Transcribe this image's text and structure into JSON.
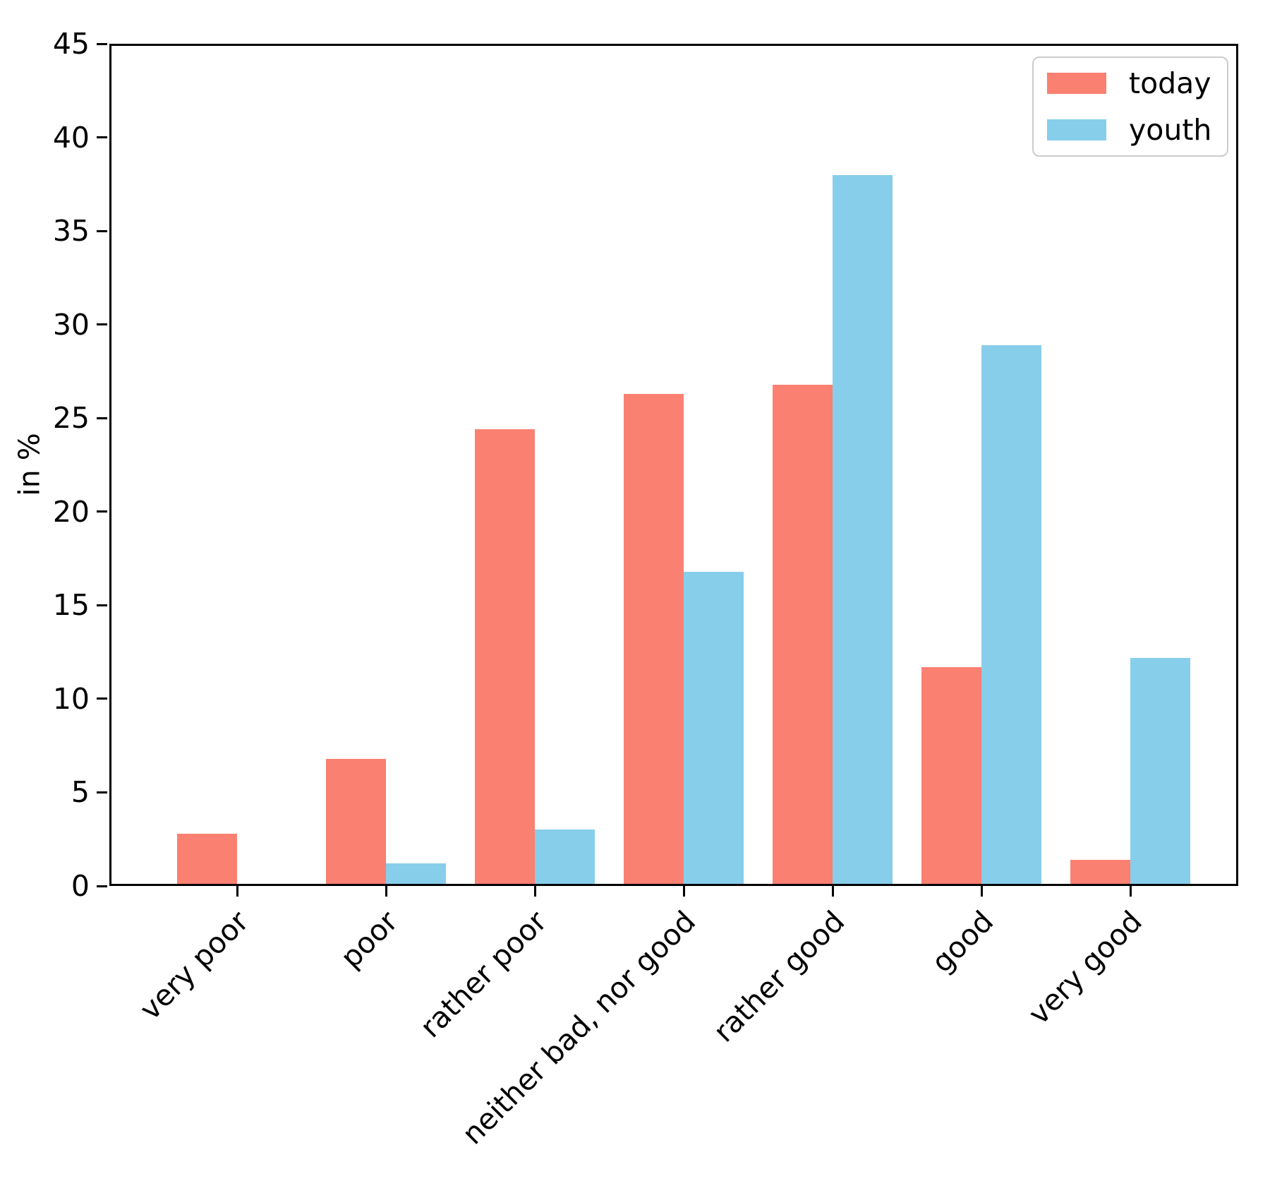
{
  "chart_data": {
    "type": "bar",
    "title": "",
    "xlabel": "",
    "ylabel": "in %",
    "categories": [
      "very poor",
      "poor",
      "rather poor",
      "neither bad, nor good",
      "rather good",
      "good",
      "very good"
    ],
    "series": [
      {
        "name": "today",
        "color": "#FA8072",
        "values": [
          2.8,
          6.8,
          24.4,
          26.3,
          26.8,
          11.7,
          1.4
        ]
      },
      {
        "name": "youth",
        "color": "#87CEEB",
        "values": [
          0.1,
          1.2,
          3.0,
          16.8,
          38.0,
          28.9,
          12.2
        ]
      }
    ],
    "ylim": [
      0,
      45
    ],
    "yticks": [
      0,
      5,
      10,
      15,
      20,
      25,
      30,
      35,
      40,
      45
    ],
    "legend_position": "upper right",
    "grid": false,
    "axis_color": "#000000",
    "background_color": "#ffffff"
  }
}
